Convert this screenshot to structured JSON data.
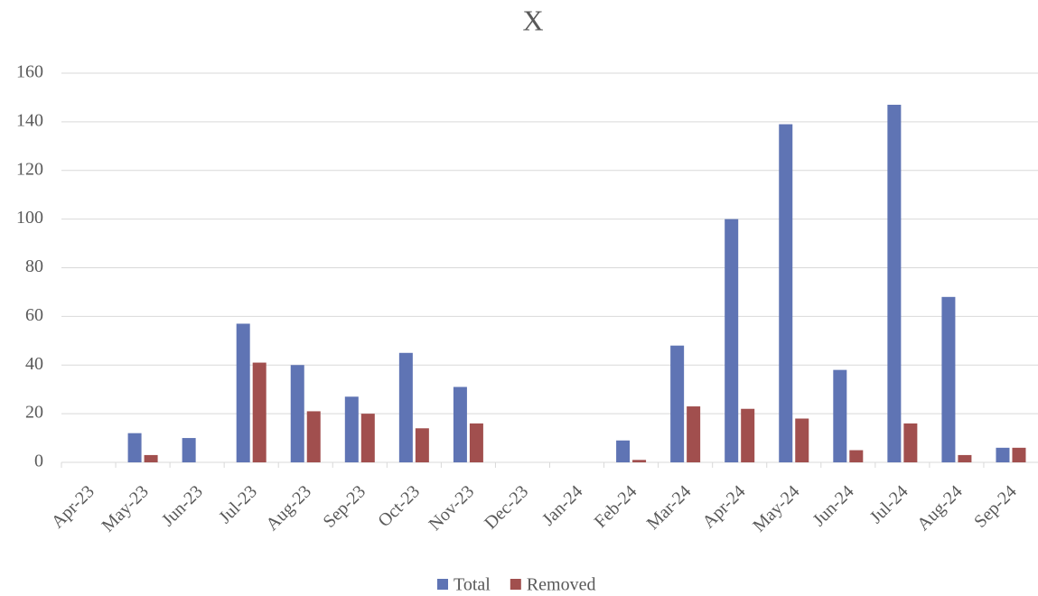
{
  "chart_data": {
    "type": "bar",
    "title": "X",
    "categories": [
      "Apr-23",
      "May-23",
      "Jun-23",
      "Jul-23",
      "Aug-23",
      "Sep-23",
      "Oct-23",
      "Nov-23",
      "Dec-23",
      "Jan-24",
      "Feb-24",
      "Mar-24",
      "Apr-24",
      "May-24",
      "Jun-24",
      "Jul-24",
      "Aug-24",
      "Sep-24"
    ],
    "series": [
      {
        "name": "Total",
        "color": "#5f74b4",
        "values": [
          0,
          12,
          10,
          57,
          40,
          27,
          45,
          31,
          0,
          0,
          9,
          48,
          100,
          139,
          38,
          147,
          68,
          6
        ]
      },
      {
        "name": "Removed",
        "color": "#a14f4e",
        "values": [
          0,
          3,
          0,
          41,
          21,
          20,
          14,
          16,
          0,
          0,
          1,
          23,
          22,
          18,
          5,
          16,
          3,
          6
        ]
      }
    ],
    "ylim": [
      0,
      160
    ],
    "yticks": [
      0,
      20,
      40,
      60,
      80,
      100,
      120,
      140,
      160
    ],
    "grid": true,
    "legend": "bottom"
  }
}
